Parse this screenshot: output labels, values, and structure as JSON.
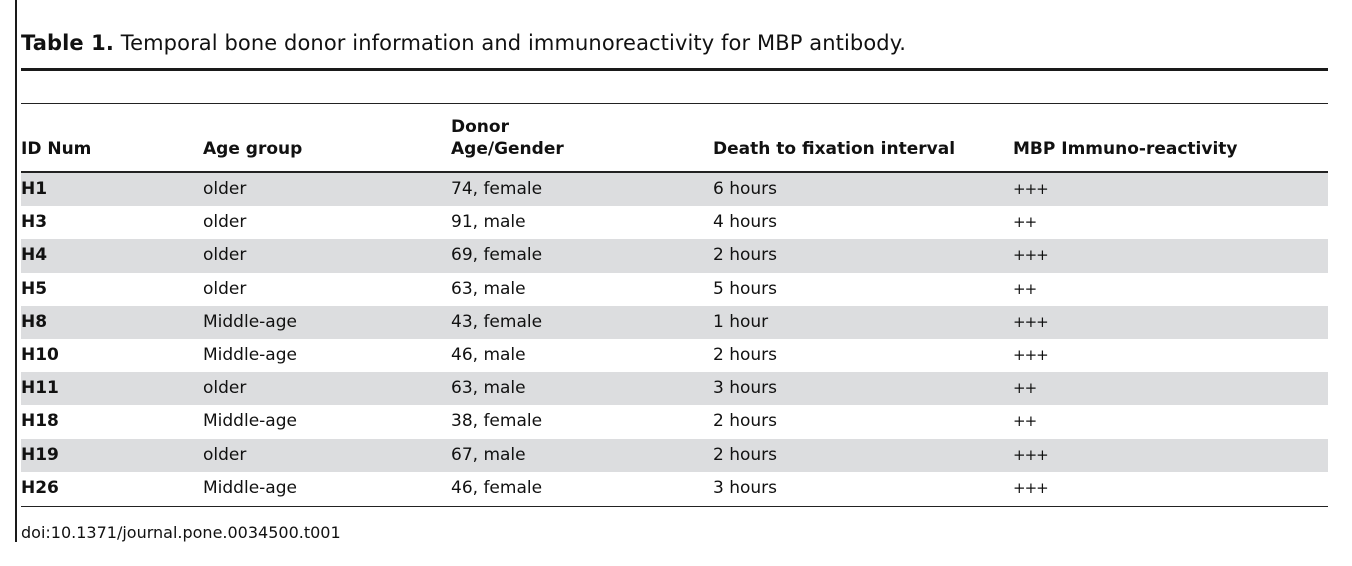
{
  "caption": {
    "label": "Table 1.",
    "text": "Temporal bone donor information and immunoreactivity for MBP antibody."
  },
  "columns": [
    "ID Num",
    "Age group",
    "Donor\nAge/Gender",
    "Death to fixation interval",
    "MBP Immuno-reactivity"
  ],
  "rows": [
    [
      "H1",
      "older",
      "74, female",
      "6 hours",
      "+++"
    ],
    [
      "H3",
      "older",
      "91, male",
      "4 hours",
      "++"
    ],
    [
      "H4",
      "older",
      "69, female",
      "2 hours",
      "+++"
    ],
    [
      "H5",
      "older",
      "63, male",
      "5 hours",
      "++"
    ],
    [
      "H8",
      "Middle-age",
      "43, female",
      "1 hour",
      "+++"
    ],
    [
      "H10",
      "Middle-age",
      "46, male",
      "2 hours",
      "+++"
    ],
    [
      "H11",
      "older",
      "63, male",
      "3 hours",
      "++"
    ],
    [
      "H18",
      "Middle-age",
      "38, female",
      "2 hours",
      "++"
    ],
    [
      "H19",
      "older",
      "67, male",
      "2 hours",
      "+++"
    ],
    [
      "H26",
      "Middle-age",
      "46, female",
      "3 hours",
      "+++"
    ]
  ],
  "footer": "doi:10.1371/journal.pone.0034500.t001",
  "colors": {
    "row_shade": "#dcdddf",
    "text": "#111111"
  }
}
